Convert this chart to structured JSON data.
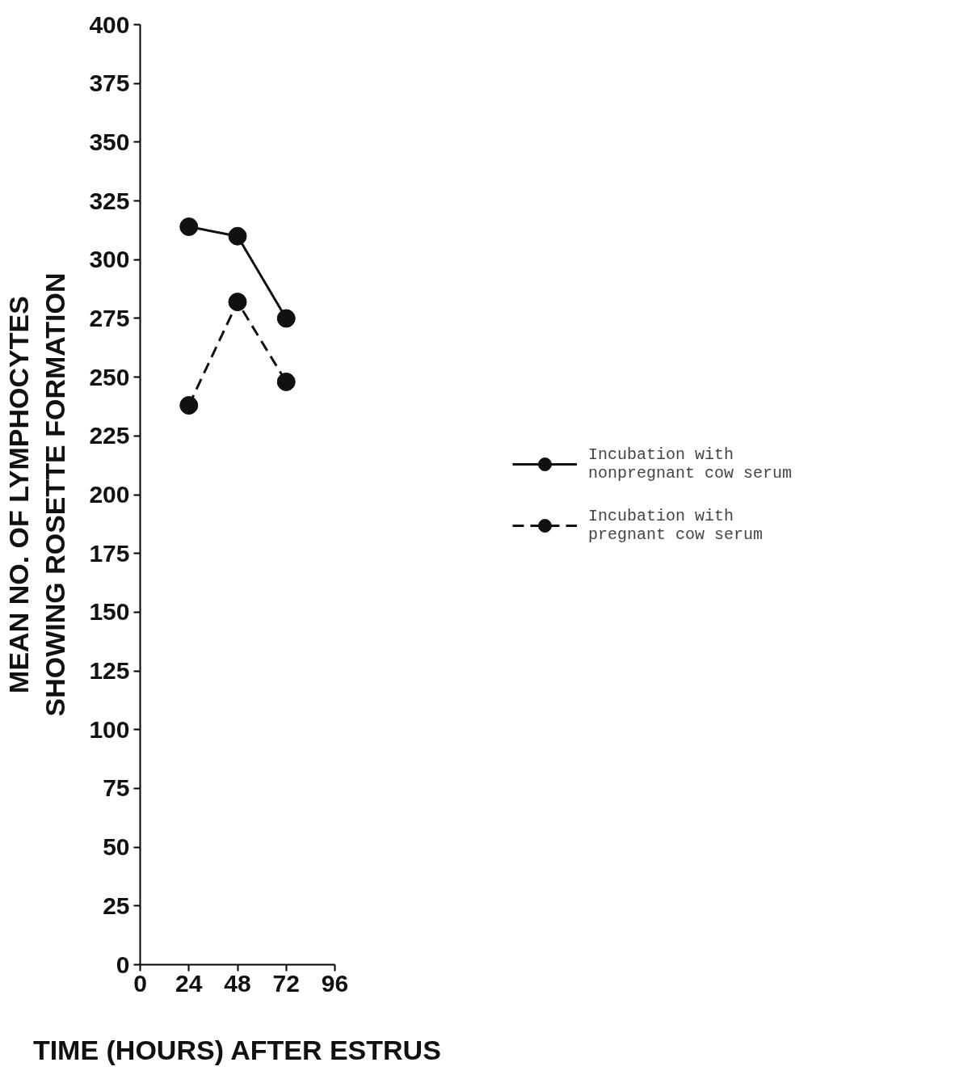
{
  "chart_data": {
    "type": "line",
    "xlabel": "TIME (HOURS) AFTER ESTRUS",
    "ylabel": "MEAN NO. OF LYMPHOCYTES\nSHOWING ROSETTE FORMATION",
    "x": [
      24,
      48,
      72
    ],
    "series": [
      {
        "name": "Incubation with\nnonpregnant cow serum",
        "color": "#111111",
        "values": [
          314,
          310,
          275
        ],
        "line_style": "solid"
      },
      {
        "name": "Incubation with\npregnant cow serum",
        "color": "#111111",
        "values": [
          238,
          282,
          248
        ],
        "line_style": "dashed"
      }
    ],
    "xlim": [
      0,
      96
    ],
    "xticks": [
      0,
      24,
      48,
      72,
      96
    ],
    "ylim": [
      0,
      400
    ],
    "yticks": [
      0,
      25,
      50,
      75,
      100,
      125,
      150,
      175,
      200,
      225,
      250,
      275,
      300,
      325,
      350,
      375,
      400
    ],
    "marker": "circle",
    "grid": false,
    "legend": "right"
  }
}
